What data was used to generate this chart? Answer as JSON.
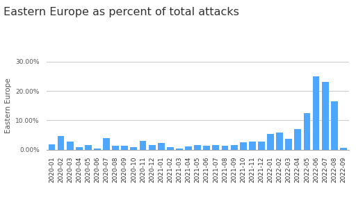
{
  "title": "Eastern Europe as percent of total attacks",
  "ylabel": "Eastern Europe",
  "categories": [
    "2020-01",
    "2020-02",
    "2020-03",
    "2020-04",
    "2020-05",
    "2020-06",
    "2020-07",
    "2020-08",
    "2020-09",
    "2020-10",
    "2020-11",
    "2020-12",
    "2021-01",
    "2021-02",
    "2021-03",
    "2021-04",
    "2021-05",
    "2021-06",
    "2021-07",
    "2021-08",
    "2021-09",
    "2021-10",
    "2021-11",
    "2021-12",
    "2022-01",
    "2022-02",
    "2022-03",
    "2022-04",
    "2022-05",
    "2022-06",
    "2022-07",
    "2022-08",
    "2022-09"
  ],
  "values": [
    1.7,
    4.7,
    2.8,
    0.8,
    1.6,
    0.3,
    3.8,
    1.3,
    1.2,
    0.9,
    2.9,
    1.5,
    2.2,
    0.8,
    0.4,
    1.0,
    1.5,
    1.3,
    1.5,
    1.3,
    1.5,
    2.5,
    2.8,
    2.7,
    5.4,
    5.8,
    3.7,
    7.0,
    12.5,
    25.0,
    23.0,
    16.5,
    0.5
  ],
  "bar_color": "#4da6ff",
  "background_color": "#ffffff",
  "grid_color": "#cccccc",
  "ylim": [
    0,
    30
  ],
  "yticks": [
    0.0,
    10.0,
    20.0,
    30.0
  ],
  "ytick_labels": [
    "0.00%",
    "10.00%",
    "20.00%",
    "30.00%"
  ],
  "title_fontsize": 11.5,
  "ylabel_fontsize": 7.5,
  "tick_fontsize": 6.5
}
